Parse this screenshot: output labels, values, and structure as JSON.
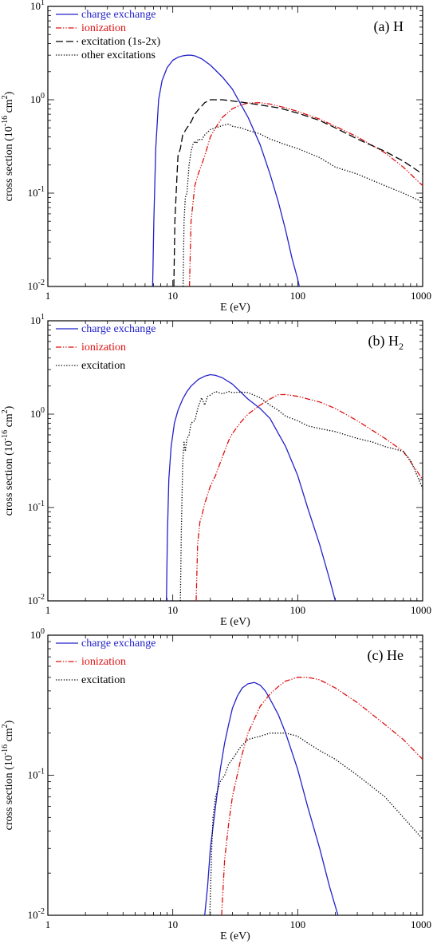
{
  "chart_data": [
    {
      "type": "line",
      "panel_label": "(a) H",
      "xlabel": "E (eV)",
      "ylabel": "cross section (10^-16 cm^2)",
      "xscale": "log",
      "yscale": "log",
      "xlim": [
        1,
        1000
      ],
      "ylim": [
        0.01,
        10
      ],
      "x_ticks": [
        "1",
        "10",
        "100",
        "1000"
      ],
      "y_ticks": [
        "10^-2",
        "10^-1",
        "10^0",
        "10^1"
      ],
      "legend_position": "top-left",
      "series": [
        {
          "name": "charge exchange",
          "color": "#2222cc",
          "style": "solid",
          "x": [
            6.9,
            7.05,
            7.3,
            7.7,
            8.2,
            9,
            10,
            11,
            12,
            13,
            14,
            15,
            17,
            20,
            25,
            30,
            40,
            50,
            60,
            70,
            80,
            90,
            100,
            103
          ],
          "y": [
            0.01,
            0.05,
            0.3,
            1.0,
            1.6,
            2.2,
            2.65,
            2.85,
            2.95,
            3.0,
            3.0,
            2.95,
            2.75,
            2.35,
            1.75,
            1.3,
            0.65,
            0.33,
            0.16,
            0.08,
            0.04,
            0.02,
            0.012,
            0.01
          ]
        },
        {
          "name": "ionization",
          "color": "#dd1111",
          "style": "dashdotdot",
          "x": [
            13.6,
            14,
            15,
            16,
            18,
            20,
            22,
            25,
            30,
            35,
            40,
            50,
            60,
            80,
            100,
            150,
            200,
            300,
            500,
            700,
            1000
          ],
          "y": [
            0.01,
            0.05,
            0.12,
            0.16,
            0.25,
            0.4,
            0.5,
            0.65,
            0.8,
            0.88,
            0.92,
            0.93,
            0.9,
            0.82,
            0.75,
            0.62,
            0.52,
            0.4,
            0.27,
            0.19,
            0.12
          ]
        },
        {
          "name": "excitation (1s-2x)",
          "color": "#000000",
          "style": "dash",
          "x": [
            10.2,
            10.4,
            10.8,
            11,
            11.5,
            12,
            13,
            14,
            15,
            16,
            18,
            20,
            25,
            30,
            40,
            50,
            70,
            100,
            150,
            200,
            300,
            500,
            700,
            1000
          ],
          "y": [
            0.01,
            0.05,
            0.15,
            0.25,
            0.3,
            0.42,
            0.5,
            0.58,
            0.7,
            0.78,
            0.93,
            1.0,
            1.0,
            0.97,
            0.92,
            0.88,
            0.82,
            0.72,
            0.6,
            0.5,
            0.38,
            0.28,
            0.22,
            0.16
          ]
        },
        {
          "name": "other excitations",
          "color": "#000000",
          "style": "dot",
          "x": [
            12.1,
            12.3,
            12.6,
            13,
            13.5,
            14,
            14.5,
            15,
            15.5,
            16,
            17,
            18,
            20,
            22,
            25,
            28,
            30,
            35,
            40,
            50,
            60,
            80,
            100,
            150,
            200,
            300,
            500,
            700,
            1000
          ],
          "y": [
            0.01,
            0.05,
            0.09,
            0.1,
            0.2,
            0.28,
            0.33,
            0.36,
            0.34,
            0.38,
            0.37,
            0.42,
            0.48,
            0.5,
            0.53,
            0.55,
            0.52,
            0.5,
            0.47,
            0.43,
            0.38,
            0.33,
            0.3,
            0.24,
            0.19,
            0.16,
            0.12,
            0.1,
            0.08
          ]
        }
      ]
    },
    {
      "type": "line",
      "panel_label": "(b) H",
      "panel_label_subscript": "2",
      "xlabel": "E (eV)",
      "ylabel": "cross section (10^-16 cm^2)",
      "xscale": "log",
      "yscale": "log",
      "xlim": [
        1,
        1000
      ],
      "ylim": [
        0.01,
        10
      ],
      "x_ticks": [
        "1",
        "10",
        "100",
        "1000"
      ],
      "y_ticks": [
        "10^-2",
        "10^-1",
        "10^0",
        "10^1"
      ],
      "legend_position": "top-left",
      "series": [
        {
          "name": "charge exchange",
          "color": "#2222cc",
          "style": "solid",
          "x": [
            8.9,
            9.05,
            9.3,
            9.7,
            10.3,
            11,
            12,
            13,
            14,
            16,
            18,
            20,
            22,
            25,
            30,
            40,
            50,
            60,
            70,
            80,
            100,
            120,
            150,
            180,
            200
          ],
          "y": [
            0.01,
            0.05,
            0.2,
            0.45,
            0.8,
            1.1,
            1.45,
            1.75,
            2.0,
            2.35,
            2.55,
            2.65,
            2.6,
            2.45,
            2.1,
            1.45,
            1.15,
            0.9,
            0.62,
            0.45,
            0.22,
            0.1,
            0.04,
            0.017,
            0.01
          ]
        },
        {
          "name": "ionization",
          "color": "#dd1111",
          "style": "dashdotdot",
          "x": [
            15.4,
            15.8,
            16.5,
            17,
            18,
            20,
            22,
            25,
            28,
            30,
            35,
            40,
            50,
            60,
            70,
            80,
            100,
            150,
            200,
            300,
            500,
            700,
            1000
          ],
          "y": [
            0.01,
            0.04,
            0.07,
            0.08,
            0.11,
            0.17,
            0.22,
            0.35,
            0.52,
            0.62,
            0.82,
            1.0,
            1.25,
            1.45,
            1.62,
            1.62,
            1.55,
            1.35,
            1.15,
            0.85,
            0.55,
            0.4,
            0.2
          ]
        },
        {
          "name": "excitation",
          "color": "#000000",
          "style": "dot",
          "x": [
            11.5,
            11.7,
            12,
            12.3,
            12.6,
            13,
            13.5,
            14,
            15,
            16,
            17,
            18,
            19,
            20,
            22,
            25,
            28,
            30,
            35,
            40,
            50,
            60,
            70,
            80,
            100,
            120,
            150,
            200,
            300,
            400,
            500,
            700,
            800,
            1000
          ],
          "y": [
            0.01,
            0.05,
            0.3,
            0.5,
            0.4,
            0.55,
            0.6,
            0.8,
            0.85,
            1.2,
            1.5,
            1.25,
            1.55,
            1.6,
            1.75,
            1.65,
            1.75,
            1.7,
            1.72,
            1.7,
            1.5,
            1.25,
            1.1,
            0.95,
            0.85,
            0.75,
            0.7,
            0.65,
            0.55,
            0.5,
            0.45,
            0.4,
            0.32,
            0.16
          ]
        }
      ]
    },
    {
      "type": "line",
      "panel_label": "(c) He",
      "xlabel": "E (eV)",
      "ylabel": "cross section (10^-16 cm^2)",
      "xscale": "log",
      "yscale": "log",
      "xlim": [
        1,
        1000
      ],
      "ylim": [
        0.01,
        1
      ],
      "x_ticks": [
        "1",
        "10",
        "100",
        "1000"
      ],
      "y_ticks": [
        "10^-2",
        "10^-1",
        "10^0"
      ],
      "legend_position": "top-left",
      "series": [
        {
          "name": "charge exchange",
          "color": "#2222cc",
          "style": "solid",
          "x": [
            18,
            19,
            20,
            22,
            24,
            26,
            28,
            30,
            33,
            36,
            40,
            45,
            50,
            55,
            60,
            70,
            80,
            100,
            120,
            150,
            180,
            210
          ],
          "y": [
            0.01,
            0.016,
            0.03,
            0.06,
            0.11,
            0.17,
            0.23,
            0.3,
            0.37,
            0.42,
            0.45,
            0.46,
            0.44,
            0.4,
            0.35,
            0.27,
            0.2,
            0.11,
            0.06,
            0.03,
            0.016,
            0.01
          ]
        },
        {
          "name": "ionization",
          "color": "#dd1111",
          "style": "dashdotdot",
          "x": [
            24.6,
            26,
            28,
            30,
            35,
            40,
            50,
            60,
            70,
            80,
            100,
            120,
            150,
            200,
            300,
            500,
            700,
            1000
          ],
          "y": [
            0.01,
            0.025,
            0.045,
            0.07,
            0.13,
            0.2,
            0.31,
            0.38,
            0.43,
            0.47,
            0.5,
            0.5,
            0.48,
            0.42,
            0.33,
            0.23,
            0.18,
            0.13
          ]
        },
        {
          "name": "excitation",
          "color": "#000000",
          "style": "dot",
          "x": [
            19.8,
            20.5,
            21,
            22,
            24,
            26,
            28,
            30,
            35,
            40,
            50,
            60,
            70,
            80,
            100,
            120,
            150,
            200,
            300,
            500,
            700,
            1000
          ],
          "y": [
            0.01,
            0.03,
            0.05,
            0.07,
            0.09,
            0.1,
            0.12,
            0.13,
            0.16,
            0.18,
            0.19,
            0.2,
            0.2,
            0.2,
            0.19,
            0.17,
            0.15,
            0.13,
            0.1,
            0.07,
            0.05,
            0.035
          ]
        }
      ]
    }
  ]
}
